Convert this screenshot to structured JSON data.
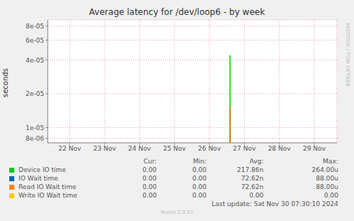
{
  "chart_data": {
    "type": "line",
    "title": "Average latency for /dev/loop6 - by week",
    "y_label": "seconds",
    "x": [
      21.4,
      26.59,
      29.6
    ],
    "xlim": [
      21.37,
      29.65
    ],
    "xticks": [
      {
        "value": 22,
        "label": "22 Nov"
      },
      {
        "value": 23,
        "label": "23 Nov"
      },
      {
        "value": 24,
        "label": "24 Nov"
      },
      {
        "value": 25,
        "label": "25 Nov"
      },
      {
        "value": 26,
        "label": "26 Nov"
      },
      {
        "value": 27,
        "label": "27 Nov"
      },
      {
        "value": 28,
        "label": "28 Nov"
      },
      {
        "value": 29,
        "label": "29 Nov"
      }
    ],
    "log": "y",
    "ylim": [
      7.3e-06,
      9.1e-05
    ],
    "yticks": [
      {
        "value": 8e-06,
        "label": "8e-06"
      },
      {
        "value": 1e-05,
        "label": "1e-05"
      },
      {
        "value": 2e-05,
        "label": "2e-05"
      },
      {
        "value": 4e-05,
        "label": "4e-05"
      },
      {
        "value": 6e-05,
        "label": "6e-05"
      },
      {
        "value": 8e-05,
        "label": "8e-05"
      }
    ],
    "grid": true,
    "marker": "vline",
    "stats_columns": [
      "Cur:",
      "Min:",
      "Avg:",
      "Max:"
    ],
    "series": [
      {
        "name": "Device IO time",
        "color": "#00cc00",
        "values": [
          null,
          4.4e-05,
          null
        ],
        "stats": [
          "0.00",
          "0.00",
          "217.86n",
          "264.00u"
        ]
      },
      {
        "name": "IO Wait time",
        "color": "#0066b3",
        "values": [
          null,
          1.5e-05,
          null
        ],
        "stats": [
          "0.00",
          "0.00",
          "72.62n",
          "88.00u"
        ]
      },
      {
        "name": "Read IO Wait time",
        "color": "#ff8000",
        "values": [
          null,
          1.5e-05,
          null
        ],
        "stats": [
          "0.00",
          "0.00",
          "72.62n",
          "88.00u"
        ]
      },
      {
        "name": "Write IO Wait time",
        "color": "#ffcc00",
        "values": [
          null,
          null,
          null
        ],
        "stats": [
          "0.00",
          "0.00",
          "0.00",
          "0.00"
        ]
      }
    ],
    "footer": "Last update: Sat Nov 30 07:30:10 2024",
    "credit": "Munin 2.0.57",
    "side_text": "RRDTOOL / TOBI OETIKER"
  }
}
